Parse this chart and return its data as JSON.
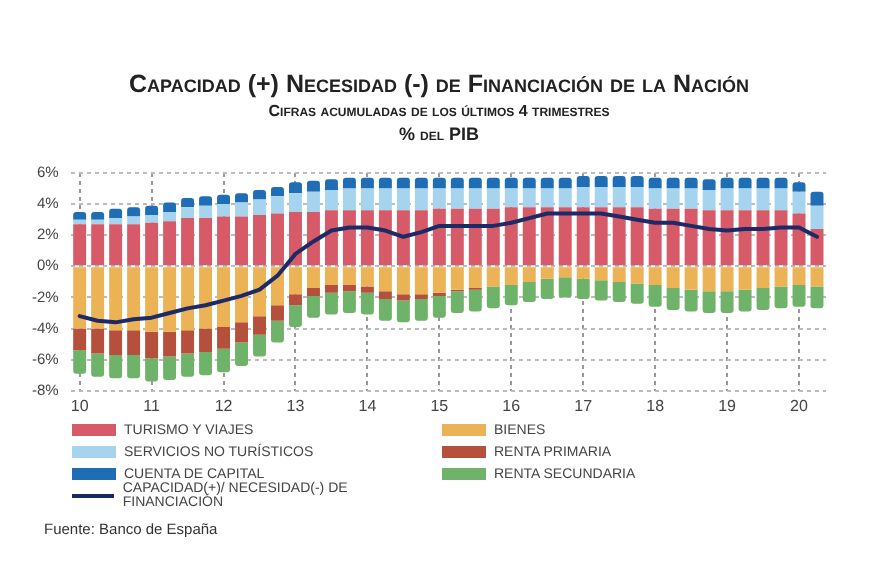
{
  "chart_data": {
    "type": "bar",
    "stacked": true,
    "title": "Capacidad (+) Necesidad (-) de Financiación de la Nación",
    "subtitle": "Cifras acumuladas de los últimos 4 trimestres",
    "ylabel": "% del PIB",
    "annotations": [
      "Fuente: Banco de España"
    ],
    "categories": [
      "10",
      null,
      null,
      null,
      "11",
      null,
      null,
      null,
      "12",
      null,
      null,
      null,
      "13",
      null,
      null,
      null,
      "14",
      null,
      null,
      null,
      "15",
      null,
      null,
      null,
      "16",
      null,
      null,
      null,
      "17",
      null,
      null,
      null,
      "18",
      null,
      null,
      null,
      "19",
      null,
      null,
      null,
      "20",
      null
    ],
    "series": [
      {
        "name": "TURISMO Y VIAJES",
        "color": "#d65a68",
        "values": [
          2.7,
          2.7,
          2.7,
          2.7,
          2.8,
          2.9,
          3.1,
          3.1,
          3.2,
          3.2,
          3.3,
          3.4,
          3.5,
          3.5,
          3.6,
          3.6,
          3.6,
          3.6,
          3.6,
          3.6,
          3.7,
          3.7,
          3.7,
          3.7,
          3.8,
          3.8,
          3.8,
          3.8,
          3.8,
          3.8,
          3.8,
          3.8,
          3.7,
          3.7,
          3.7,
          3.6,
          3.6,
          3.6,
          3.6,
          3.6,
          3.4,
          2.4
        ]
      },
      {
        "name": "BIENES",
        "color": "#ecb256",
        "values": [
          -4.0,
          -4.0,
          -4.1,
          -4.1,
          -4.2,
          -4.2,
          -4.1,
          -4.0,
          -3.9,
          -3.6,
          -3.2,
          -2.5,
          -1.8,
          -1.4,
          -1.2,
          -1.2,
          -1.3,
          -1.6,
          -1.8,
          -1.8,
          -1.7,
          -1.5,
          -1.4,
          -1.3,
          -1.2,
          -1.0,
          -0.8,
          -0.7,
          -0.8,
          -0.9,
          -1.0,
          -1.1,
          -1.2,
          -1.4,
          -1.5,
          -1.6,
          -1.6,
          -1.5,
          -1.4,
          -1.3,
          -1.2,
          -1.3
        ]
      },
      {
        "name": "SERVICIOS NO TURÍSTICOS",
        "color": "#a6d4ee",
        "values": [
          0.3,
          0.3,
          0.4,
          0.5,
          0.5,
          0.6,
          0.7,
          0.8,
          0.8,
          0.9,
          1.0,
          1.1,
          1.2,
          1.3,
          1.3,
          1.4,
          1.4,
          1.4,
          1.4,
          1.4,
          1.3,
          1.3,
          1.3,
          1.3,
          1.2,
          1.2,
          1.2,
          1.2,
          1.3,
          1.3,
          1.3,
          1.3,
          1.3,
          1.3,
          1.3,
          1.3,
          1.4,
          1.4,
          1.4,
          1.4,
          1.4,
          1.5
        ]
      },
      {
        "name": "RENTA PRIMARIA",
        "color": "#b5503c",
        "values": [
          -1.4,
          -1.6,
          -1.6,
          -1.6,
          -1.7,
          -1.6,
          -1.5,
          -1.5,
          -1.4,
          -1.3,
          -1.2,
          -1.0,
          -0.7,
          -0.5,
          -0.5,
          -0.4,
          -0.4,
          -0.5,
          -0.4,
          -0.3,
          -0.2,
          -0.1,
          -0.1,
          0,
          0,
          0,
          0,
          0,
          0,
          0,
          0,
          0,
          0,
          0,
          0,
          0,
          0,
          0,
          0,
          0,
          0,
          0
        ]
      },
      {
        "name": "CUENTA DE CAPITAL",
        "color": "#1f6db5",
        "values": [
          0.5,
          0.5,
          0.6,
          0.6,
          0.6,
          0.6,
          0.6,
          0.6,
          0.6,
          0.6,
          0.6,
          0.6,
          0.7,
          0.7,
          0.7,
          0.7,
          0.7,
          0.7,
          0.7,
          0.7,
          0.7,
          0.7,
          0.7,
          0.7,
          0.7,
          0.7,
          0.7,
          0.7,
          0.7,
          0.7,
          0.7,
          0.7,
          0.7,
          0.7,
          0.7,
          0.7,
          0.7,
          0.7,
          0.7,
          0.7,
          0.6,
          0.9
        ]
      },
      {
        "name": "RENTA SECUNDARIA",
        "color": "#6fb26a",
        "values": [
          -1.5,
          -1.5,
          -1.5,
          -1.5,
          -1.5,
          -1.5,
          -1.5,
          -1.5,
          -1.5,
          -1.5,
          -1.4,
          -1.4,
          -1.4,
          -1.4,
          -1.4,
          -1.4,
          -1.4,
          -1.4,
          -1.4,
          -1.4,
          -1.4,
          -1.4,
          -1.4,
          -1.4,
          -1.3,
          -1.3,
          -1.3,
          -1.3,
          -1.3,
          -1.3,
          -1.3,
          -1.3,
          -1.4,
          -1.4,
          -1.4,
          -1.4,
          -1.4,
          -1.4,
          -1.4,
          -1.4,
          -1.4,
          -1.4
        ]
      },
      {
        "name": "CAPACIDAD(+)/ NECESIDAD(-) DE FINANCIACIÓN",
        "type": "line",
        "color": "#1c2a66",
        "values": [
          -3.2,
          -3.5,
          -3.6,
          -3.4,
          -3.3,
          -3.0,
          -2.7,
          -2.5,
          -2.2,
          -1.9,
          -1.5,
          -0.6,
          0.8,
          1.6,
          2.3,
          2.5,
          2.5,
          2.3,
          1.9,
          2.2,
          2.6,
          2.6,
          2.6,
          2.6,
          2.8,
          3.1,
          3.4,
          3.4,
          3.4,
          3.4,
          3.2,
          3.0,
          2.8,
          2.8,
          2.6,
          2.4,
          2.3,
          2.4,
          2.4,
          2.5,
          2.5,
          1.9
        ]
      }
    ],
    "ylim": [
      -8,
      6
    ],
    "yticks": [
      {
        "value": -8,
        "label": "-8%"
      },
      {
        "value": -6,
        "label": "-6%"
      },
      {
        "value": -4,
        "label": "-4%"
      },
      {
        "value": -2,
        "label": "-2%"
      },
      {
        "value": 0,
        "label": "0%"
      },
      {
        "value": 2,
        "label": "2%"
      },
      {
        "value": 4,
        "label": "4%"
      },
      {
        "value": 6,
        "label": "6%"
      }
    ],
    "grid": true,
    "legend": "bottom",
    "marker": "none",
    "line_style": "solid"
  }
}
